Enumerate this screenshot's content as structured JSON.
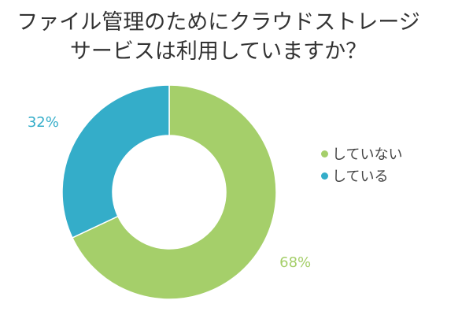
{
  "chart_data": {
    "type": "pie",
    "variant": "donut",
    "title_lines": [
      "ファイル管理のためにクラウドストレージ",
      "サービスは利用していますか？"
    ],
    "slices": [
      {
        "name": "していない",
        "value": 68,
        "label": "68%",
        "color": "#a5cf6a"
      },
      {
        "name": "している",
        "value": 32,
        "label": "32%",
        "color": "#34adc9"
      }
    ],
    "legend_placement": "right"
  }
}
